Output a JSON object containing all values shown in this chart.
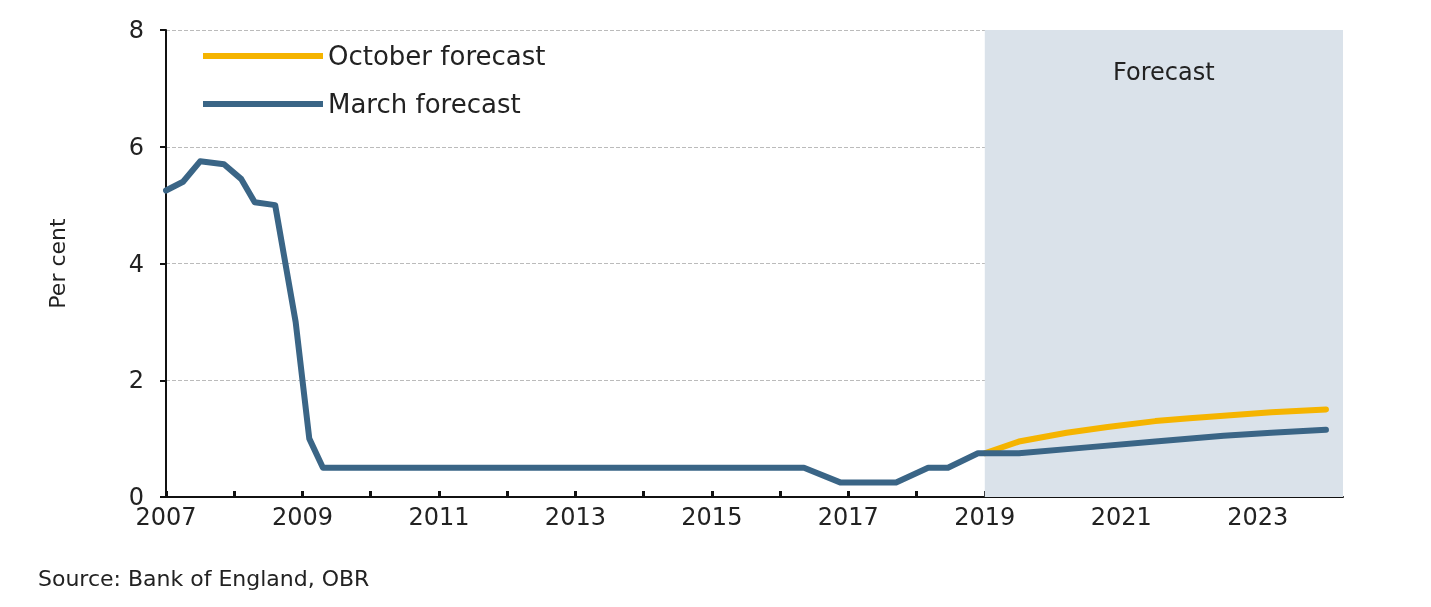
{
  "chart_data": {
    "type": "line",
    "ylabel": "Per cent",
    "xlim": [
      2007,
      2024.25
    ],
    "xticks": [
      2007,
      {
        "value": 2008,
        "label": null
      },
      2009,
      {
        "value": 2010,
        "label": null
      },
      2011,
      {
        "value": 2012,
        "label": null
      },
      2013,
      {
        "value": 2014,
        "label": null
      },
      2015,
      {
        "value": 2016,
        "label": null
      },
      2017,
      {
        "value": 2018,
        "label": null
      },
      2019,
      {
        "value": 2020,
        "label": null
      },
      2021,
      {
        "value": 2022,
        "label": null
      },
      2023,
      {
        "value": 2024,
        "label": null
      }
    ],
    "ylim": [
      0,
      8
    ],
    "yticks": [
      0,
      2,
      4,
      6,
      8
    ],
    "series": [
      {
        "name": "October forecast",
        "color": "#f5b400",
        "x": [
          2019,
          2019.5,
          2020.2,
          2020.8,
          2021.5,
          2022,
          2022.6,
          2023.2,
          2024
        ],
        "values": [
          0.75,
          0.95,
          1.1,
          1.2,
          1.3,
          1.35,
          1.4,
          1.45,
          1.5
        ]
      },
      {
        "name": "March forecast",
        "color": "#3a6586",
        "x": [
          2007,
          2007.25,
          2007.5,
          2007.85,
          2008.1,
          2008.3,
          2008.6,
          2008.9,
          2009.1,
          2009.3,
          2016.35,
          2016.88,
          2017.7,
          2018.17,
          2018.46,
          2018.9,
          2019.5,
          2020.5,
          2021.5,
          2022.5,
          2023.2,
          2024
        ],
        "values": [
          5.25,
          5.4,
          5.75,
          5.7,
          5.45,
          5.05,
          5.0,
          3.0,
          1.0,
          0.5,
          0.5,
          0.25,
          0.25,
          0.5,
          0.5,
          0.75,
          0.75,
          0.85,
          0.95,
          1.05,
          1.1,
          1.15
        ]
      }
    ],
    "bands": [
      {
        "axis": "x",
        "from": 2019,
        "to": 2024.25,
        "label": "Forecast",
        "color": "#dae2ea"
      }
    ],
    "grid": "y",
    "line_style": "solid",
    "marker": "none",
    "legend": "top left",
    "annotations": [
      "Source: Bank of England, OBR"
    ]
  }
}
